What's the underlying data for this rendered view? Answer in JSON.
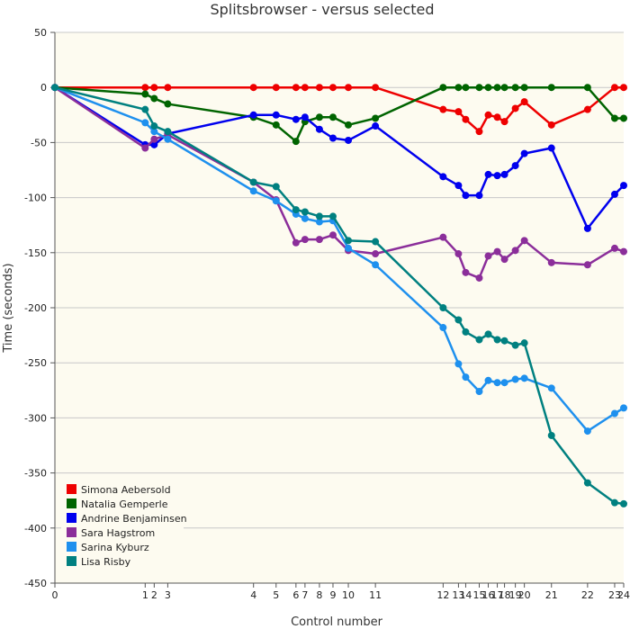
{
  "chart_data": {
    "type": "line",
    "title": "Splitsbrowser - versus selected",
    "xlabel": "Control number",
    "ylabel": "Time (seconds)",
    "ylim": [
      -450,
      50
    ],
    "y_ticks": [
      50,
      0,
      -50,
      -100,
      -150,
      -200,
      -250,
      -300,
      -350,
      -400,
      -450
    ],
    "x_tick_labels": [
      "0",
      "1",
      "2",
      "3",
      "4",
      "5",
      "6",
      "7",
      "8",
      "9",
      "10",
      "11",
      "12",
      "13",
      "14",
      "15",
      "16",
      "17",
      "18",
      "19",
      "20",
      "21",
      "22",
      "23",
      "24"
    ],
    "x_tick_positions": [
      0,
      1.0,
      1.1,
      1.25,
      2.2,
      2.45,
      2.67,
      2.77,
      2.93,
      3.08,
      3.25,
      3.55,
      4.3,
      4.47,
      4.55,
      4.7,
      4.8,
      4.9,
      4.98,
      5.1,
      5.2,
      5.5,
      5.9,
      6.2,
      6.3
    ],
    "x_range": [
      0,
      6.3
    ],
    "grid": true,
    "legend_position": "bottom-left",
    "series": [
      {
        "name": "Simona Aebersold",
        "color": "#ee0000",
        "values": [
          0,
          0,
          0,
          0,
          0,
          0,
          0,
          0,
          0,
          0,
          0,
          0,
          -20,
          -22,
          -29,
          -40,
          -25,
          -27,
          -31,
          -19,
          -13,
          -34,
          -20,
          0,
          0
        ]
      },
      {
        "name": "Natalia Gemperle",
        "color": "#006400",
        "values": [
          0,
          -6,
          -10,
          -15,
          -27,
          -34,
          -49,
          -31,
          -27,
          -27,
          -34,
          -28,
          0,
          0,
          0,
          0,
          0,
          0,
          0,
          0,
          0,
          0,
          0,
          -28,
          -28
        ]
      },
      {
        "name": "Andrine Benjaminsen",
        "color": "#0000ee",
        "values": [
          0,
          -52,
          -52,
          -42,
          -25,
          -25,
          -29,
          -27,
          -38,
          -46,
          -48,
          -35,
          -81,
          -89,
          -98,
          -98,
          -79,
          -80,
          -79,
          -71,
          -60,
          -55,
          -128,
          -97,
          -89
        ]
      },
      {
        "name": "Sara Hagstrom",
        "color": "#8b2e9a",
        "values": [
          0,
          -55,
          -47,
          -43,
          -86,
          -102,
          -141,
          -138,
          -138,
          -134,
          -148,
          -151,
          -136,
          -151,
          -168,
          -173,
          -153,
          -149,
          -156,
          -148,
          -139,
          -159,
          -161,
          -146,
          -149
        ]
      },
      {
        "name": "Sarina Kyburz",
        "color": "#1e90ee",
        "values": [
          0,
          -32,
          -40,
          -47,
          -94,
          -103,
          -115,
          -119,
          -122,
          -121,
          -146,
          -161,
          -218,
          -251,
          -263,
          -276,
          -266,
          -268,
          -268,
          -265,
          -264,
          -273,
          -312,
          -296,
          -291
        ]
      },
      {
        "name": "Lisa Risby",
        "color": "#008080",
        "values": [
          0,
          -20,
          -35,
          -40,
          -86,
          -90,
          -111,
          -113,
          -117,
          -117,
          -139,
          -140,
          -200,
          -211,
          -222,
          -229,
          -224,
          -229,
          -230,
          -234,
          -232,
          -316,
          -359,
          -377,
          -378
        ]
      }
    ]
  }
}
